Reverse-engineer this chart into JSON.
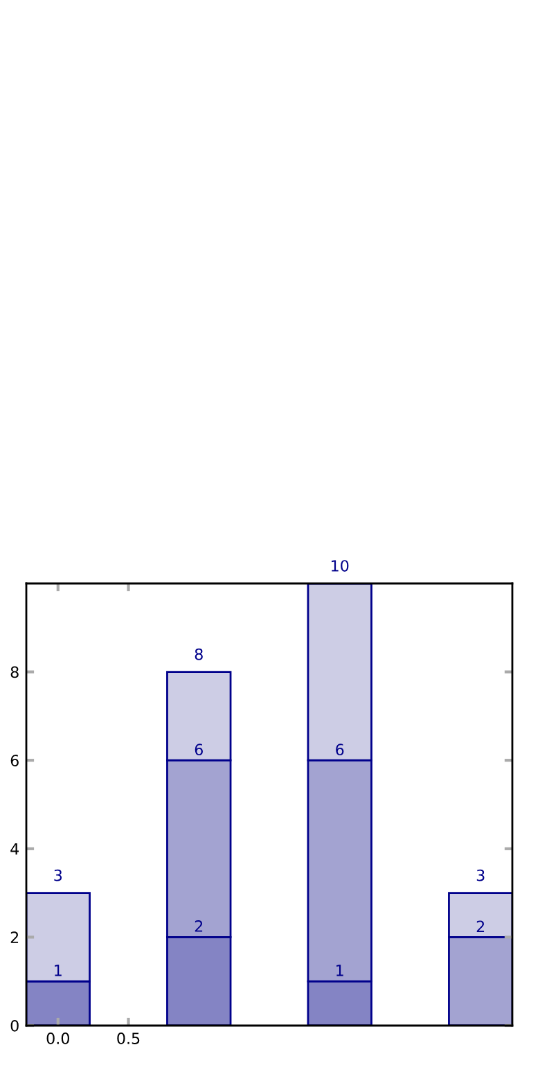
{
  "chart_data": {
    "type": "bar",
    "stacked": true,
    "x": [
      0,
      1,
      2,
      3
    ],
    "xlim": [
      -0.225,
      3.225
    ],
    "xticks": [
      {
        "value": 0,
        "label": "0.0"
      },
      0.5
    ],
    "ylim": [
      0,
      10
    ],
    "yticks": [
      0,
      2,
      4,
      6,
      8
    ],
    "grid": false,
    "legend": false,
    "series": [
      {
        "color": "#8484c4",
        "values": [
          1,
          2,
          1,
          0
        ],
        "value_labels": [
          "1",
          "2",
          "1",
          null
        ]
      },
      {
        "color": "#a3a3d1",
        "values": [
          0,
          4,
          5,
          2
        ]
      },
      {
        "color": "#cdcde5",
        "values": [
          2,
          2,
          4,
          1
        ]
      }
    ],
    "totals": [
      "3",
      "8",
      "10",
      "3"
    ],
    "annotations": [
      {
        "text": "6",
        "x": 1,
        "y": 6
      },
      {
        "text": "6",
        "x": 2,
        "y": 6
      },
      {
        "text": "2",
        "x": 3,
        "y": 2
      }
    ]
  }
}
